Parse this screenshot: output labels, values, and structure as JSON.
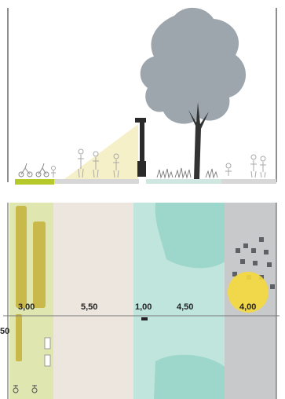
{
  "section": {
    "colors": {
      "tree": "#9ea6ad",
      "trunk": "#333333",
      "pole": "#2a2a2a",
      "light_cone": "#f6f0c8",
      "lime_strip": "#b6c92a",
      "ground": "#d7d7d7",
      "people": "#b0b0b0"
    },
    "icons": [
      "tree-icon",
      "street-lamp-icon",
      "pedestrian-icon",
      "bicycle-icon",
      "shrub-icon"
    ]
  },
  "plan": {
    "colors": {
      "green_strip": "#dfe6b0",
      "green_dots": "#c9b84a",
      "footpath": "#ece6de",
      "cycle_lane": "#e4ddd6",
      "teal_light": "#bfe5dc",
      "teal_mid": "#9dd6ca",
      "grey_zone": "#c8c9cb",
      "yellow_crown": "#f5d93d"
    },
    "dimensions": [
      "3,00",
      "5,50",
      "1,00",
      "4,50",
      "4,00"
    ],
    "edge_label": "50"
  }
}
